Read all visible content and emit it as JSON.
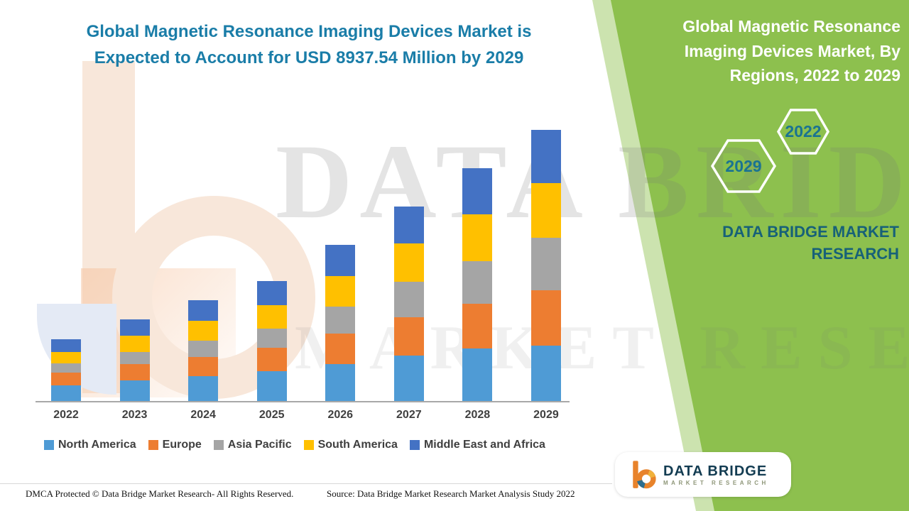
{
  "header": {
    "title_lines": [
      "Global Magnetic Resonance Imaging Devices Market is",
      "Expected to Account for USD 8937.54 Million by 2029"
    ]
  },
  "side_panel": {
    "title_lines": [
      "Global Magnetic Resonance",
      "Imaging Devices Market, By",
      "Regions, 2022 to 2029"
    ],
    "hexagon_years": [
      "2029",
      "2022"
    ],
    "brand_lines": [
      "DATA BRIDGE MARKET",
      "RESEARCH"
    ],
    "accent_green": "#8dc04e",
    "title_text_color": "#ffffff",
    "brand_text_color": "#176178"
  },
  "watermark": {
    "line1": "DATA BRIDGE",
    "line2": "MARKET RESEARCH"
  },
  "chart_data": {
    "type": "bar",
    "stacked": true,
    "title": "Global Magnetic Resonance Imaging Devices Market is Expected to Account for USD 8937.54 Million by 2029",
    "categories": [
      "2022",
      "2023",
      "2024",
      "2025",
      "2026",
      "2027",
      "2028",
      "2029"
    ],
    "series": [
      {
        "name": "North America",
        "color": "#4f9bd5",
        "values": [
          515,
          678,
          819,
          982,
          1216,
          1497,
          1731,
          1824
        ]
      },
      {
        "name": "Europe",
        "color": "#ed7d31",
        "values": [
          420,
          538,
          632,
          772,
          1006,
          1263,
          1474,
          1824
        ]
      },
      {
        "name": "Asia Pacific",
        "color": "#a5a5a5",
        "values": [
          305,
          398,
          538,
          632,
          889,
          1170,
          1403,
          1731
        ]
      },
      {
        "name": "South America",
        "color": "#ffc000",
        "values": [
          375,
          538,
          655,
          772,
          1006,
          1263,
          1544,
          1801
        ]
      },
      {
        "name": "Middle East and Africa",
        "color": "#4472c4",
        "values": [
          420,
          538,
          678,
          795,
          1029,
          1216,
          1520,
          1757.54
        ]
      }
    ],
    "xlabel": "",
    "ylabel": "",
    "ylim": [
      0,
      9000
    ],
    "grid": false,
    "y_axis_visible": false,
    "legend_position": "bottom",
    "total_2029": 8937.54
  },
  "footer": {
    "dmca": "DMCA Protected © Data Bridge Market Research- All Rights Reserved.",
    "source": "Source: Data Bridge Market Research Market Analysis Study 2022"
  },
  "logo_card": {
    "brand": "DATA BRIDGE",
    "sub": "MARKET RESEARCH"
  },
  "theme": {
    "title_color": "#1a7da8",
    "axis_label_color": "#3f3f3f"
  }
}
